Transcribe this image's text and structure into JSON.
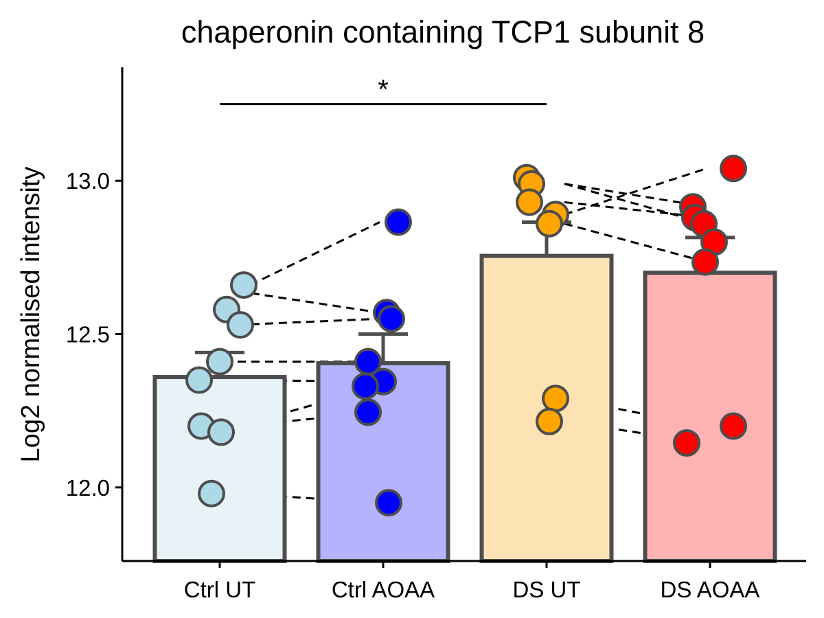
{
  "chart_data": {
    "type": "bar",
    "title": "chaperonin containing TCP1 subunit 8",
    "xlabel": "",
    "ylabel": "Log2 normalised intensity",
    "categories": [
      "Ctrl UT",
      "Ctrl AOAA",
      "DS UT",
      "DS AOAA"
    ],
    "yticks": [
      "12.0",
      "12.5",
      "13.0"
    ],
    "ylim": [
      11.76,
      13.37
    ],
    "grid": false,
    "legend": "none",
    "bars": [
      {
        "category": "Ctrl UT",
        "mean": 12.36,
        "error_upper": 12.44,
        "fill": "#e8f3f8"
      },
      {
        "category": "Ctrl AOAA",
        "mean": 12.405,
        "error_upper": 12.5,
        "fill": "#b3b3ff"
      },
      {
        "category": "DS UT",
        "mean": 12.755,
        "error_upper": 12.865,
        "fill": "#fde3b3"
      },
      {
        "category": "DS AOAA",
        "mean": 12.7,
        "error_upper": 12.815,
        "fill": "#ffb3b3"
      }
    ],
    "points": {
      "Ctrl UT": [
        12.66,
        12.58,
        12.53,
        12.41,
        12.35,
        12.2,
        12.18,
        11.98
      ],
      "Ctrl AOAA": [
        12.865,
        12.57,
        12.55,
        12.41,
        12.345,
        12.33,
        12.245,
        11.95
      ],
      "DS UT": [
        13.01,
        12.99,
        12.93,
        12.89,
        12.86,
        12.29,
        12.215
      ],
      "DS AOAA": [
        13.04,
        12.915,
        12.88,
        12.86,
        12.8,
        12.735,
        12.2,
        12.145
      ]
    },
    "point_colors": {
      "Ctrl UT": "#add8e6",
      "Ctrl AOAA": "#0000ff",
      "DS UT": "#ffa500",
      "DS AOAA": "#ff0000"
    },
    "pairs": [
      {
        "from": "Ctrl UT",
        "to": "Ctrl AOAA",
        "values": [
          [
            12.64,
            12.57
          ],
          [
            12.53,
            12.55
          ],
          [
            12.41,
            12.41
          ],
          [
            12.35,
            12.345
          ],
          [
            12.2,
            12.33
          ],
          [
            12.2,
            12.245
          ],
          [
            11.98,
            11.95
          ]
        ]
      },
      {
        "from": "Ctrl UT",
        "to": "Ctrl AOAA",
        "values": [
          [
            12.64,
            12.865
          ]
        ]
      },
      {
        "from": "DS UT",
        "to": "DS AOAA",
        "values": [
          [
            12.99,
            12.915
          ],
          [
            12.99,
            12.86
          ],
          [
            12.93,
            12.88
          ],
          [
            12.89,
            13.04
          ],
          [
            12.86,
            12.735
          ],
          [
            12.29,
            12.2
          ],
          [
            12.215,
            12.145
          ]
        ]
      }
    ],
    "significance": [
      {
        "from": "Ctrl UT",
        "to": "DS UT",
        "label": "*",
        "y": 13.25
      }
    ],
    "colors": {
      "outline": "#4d4d4d",
      "axis": "#000000",
      "line": "#000000"
    }
  }
}
